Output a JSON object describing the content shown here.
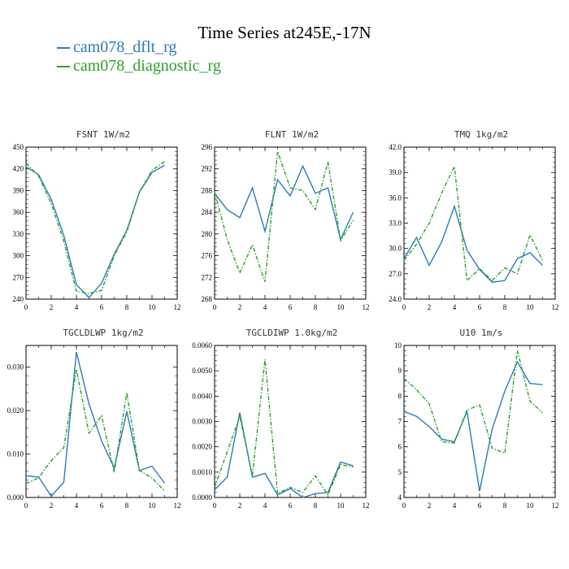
{
  "title": "Time Series at245E,-17N",
  "legend": [
    {
      "name": "cam078_dflt_rg",
      "color": "#2b7bb9",
      "dash": "solid"
    },
    {
      "name": "cam078_diagnostic_rg",
      "color": "#2ca02c",
      "dash": "dashed"
    }
  ],
  "chart_data": [
    {
      "type": "line",
      "title": "FSNT  1W/m2",
      "x": [
        0,
        1,
        2,
        3,
        4,
        5,
        6,
        7,
        8,
        9,
        10,
        11
      ],
      "xlim": [
        0,
        12
      ],
      "ylim": [
        240,
        450
      ],
      "xticks": [
        0,
        2,
        4,
        6,
        8,
        10,
        12
      ],
      "yticks": [
        240,
        270,
        300,
        330,
        360,
        390,
        420,
        450
      ],
      "ytick_labels": [
        "240",
        "270",
        "300",
        "330",
        "360",
        "390",
        "420",
        "450"
      ],
      "series": [
        {
          "name": "cam078_dflt_rg",
          "values": [
            423,
            412,
            378,
            328,
            260,
            242,
            262,
            302,
            335,
            388,
            415,
            425
          ]
        },
        {
          "name": "cam078_diagnostic_rg",
          "values": [
            428,
            410,
            372,
            320,
            251,
            248,
            252,
            300,
            333,
            388,
            418,
            430
          ]
        }
      ]
    },
    {
      "type": "line",
      "title": "FLNT  1W/m2",
      "x": [
        0,
        1,
        2,
        3,
        4,
        5,
        6,
        7,
        8,
        9,
        10,
        11
      ],
      "xlim": [
        0,
        12
      ],
      "ylim": [
        268,
        296
      ],
      "xticks": [
        0,
        2,
        4,
        6,
        8,
        10,
        12
      ],
      "yticks": [
        268,
        272,
        276,
        280,
        284,
        288,
        292,
        296
      ],
      "ytick_labels": [
        "268",
        "272",
        "276",
        "280",
        "284",
        "288",
        "292",
        "296"
      ],
      "series": [
        {
          "name": "cam078_dflt_rg",
          "values": [
            287.5,
            284.5,
            283.0,
            288.5,
            280.5,
            290.0,
            287.0,
            292.5,
            287.5,
            288.5,
            279.0,
            284.0
          ]
        },
        {
          "name": "cam078_diagnostic_rg",
          "values": [
            287.8,
            279.0,
            272.8,
            278.0,
            271.2,
            295.2,
            288.5,
            288.0,
            284.5,
            293.3,
            278.8,
            282.5
          ]
        }
      ]
    },
    {
      "type": "line",
      "title": "TMQ  1kg/m2",
      "x": [
        0,
        1,
        2,
        3,
        4,
        5,
        6,
        7,
        8,
        9,
        10,
        11
      ],
      "xlim": [
        0,
        12
      ],
      "ylim": [
        24,
        42
      ],
      "xticks": [
        0,
        2,
        4,
        6,
        8,
        10,
        12
      ],
      "yticks": [
        24,
        27,
        30,
        33,
        36,
        39,
        42
      ],
      "ytick_labels": [
        "24.0",
        "27.0",
        "30.0",
        "33.0",
        "36.0",
        "39.0",
        "42.0"
      ],
      "series": [
        {
          "name": "cam078_dflt_rg",
          "values": [
            28.8,
            31.3,
            28.0,
            30.8,
            35.0,
            29.8,
            27.5,
            26.0,
            26.2,
            28.8,
            29.5,
            28.0
          ]
        },
        {
          "name": "cam078_diagnostic_rg",
          "values": [
            28.6,
            30.5,
            33.0,
            36.6,
            39.7,
            26.2,
            27.6,
            26.2,
            27.7,
            27.0,
            31.6,
            28.6
          ]
        }
      ]
    },
    {
      "type": "line",
      "title": "TGCLDLWP  1kg/m2",
      "x": [
        0,
        1,
        2,
        3,
        4,
        5,
        6,
        7,
        8,
        9,
        10,
        11
      ],
      "xlim": [
        0,
        12
      ],
      "ylim": [
        0,
        0.035
      ],
      "xticks": [
        0,
        2,
        4,
        6,
        8,
        10,
        12
      ],
      "yticks": [
        0,
        0.01,
        0.02,
        0.03
      ],
      "ytick_labels": [
        "0.000",
        "0.010",
        "0.020",
        "0.030"
      ],
      "series": [
        {
          "name": "cam078_dflt_rg",
          "values": [
            0.005,
            0.0047,
            0.0003,
            0.0035,
            0.0335,
            0.0215,
            0.013,
            0.0068,
            0.0198,
            0.0062,
            0.0072,
            0.0033
          ]
        },
        {
          "name": "cam078_diagnostic_rg",
          "values": [
            0.0032,
            0.0045,
            0.0085,
            0.0115,
            0.0295,
            0.0148,
            0.0188,
            0.0058,
            0.0241,
            0.0062,
            0.0045,
            0.0015
          ]
        }
      ]
    },
    {
      "type": "line",
      "title": "TGCLDIWP  1.0kg/m2",
      "x": [
        0,
        1,
        2,
        3,
        4,
        5,
        6,
        7,
        8,
        9,
        10,
        11
      ],
      "xlim": [
        0,
        12
      ],
      "ylim": [
        0,
        0.006
      ],
      "xticks": [
        0,
        2,
        4,
        6,
        8,
        10,
        12
      ],
      "yticks": [
        0,
        0.001,
        0.002,
        0.003,
        0.004,
        0.005,
        0.006
      ],
      "ytick_labels": [
        "0.0000",
        "0.0010",
        "0.0020",
        "0.0030",
        "0.0040",
        "0.0050",
        "0.0060"
      ],
      "series": [
        {
          "name": "cam078_dflt_rg",
          "values": [
            0.0003,
            0.0008,
            0.00335,
            0.0008,
            0.00095,
            0.0001,
            0.00035,
            0.0,
            0.00015,
            0.0002,
            0.0014,
            0.00125
          ]
        },
        {
          "name": "cam078_diagnostic_rg",
          "values": [
            0.0004,
            0.0018,
            0.0032,
            0.00085,
            0.00545,
            0.00015,
            0.0004,
            0.0002,
            0.00085,
            0.0001,
            0.0013,
            0.0012
          ]
        }
      ]
    },
    {
      "type": "line",
      "title": "U10  1m/s",
      "x": [
        0,
        1,
        2,
        3,
        4,
        5,
        6,
        7,
        8,
        9,
        10,
        11
      ],
      "xlim": [
        0,
        12
      ],
      "ylim": [
        4,
        10
      ],
      "xticks": [
        0,
        2,
        4,
        6,
        8,
        10,
        12
      ],
      "yticks": [
        4,
        5,
        6,
        7,
        8,
        9,
        10
      ],
      "ytick_labels": [
        "4",
        "5",
        "6",
        "7",
        "8",
        "9",
        "10"
      ],
      "series": [
        {
          "name": "cam078_dflt_rg",
          "values": [
            7.4,
            7.2,
            6.8,
            6.3,
            6.2,
            7.4,
            4.25,
            6.7,
            8.2,
            9.35,
            8.5,
            8.45
          ]
        },
        {
          "name": "cam078_diagnostic_rg",
          "values": [
            8.7,
            8.25,
            7.7,
            6.2,
            6.15,
            7.45,
            7.65,
            5.95,
            5.75,
            9.8,
            7.8,
            7.35
          ]
        }
      ]
    }
  ]
}
